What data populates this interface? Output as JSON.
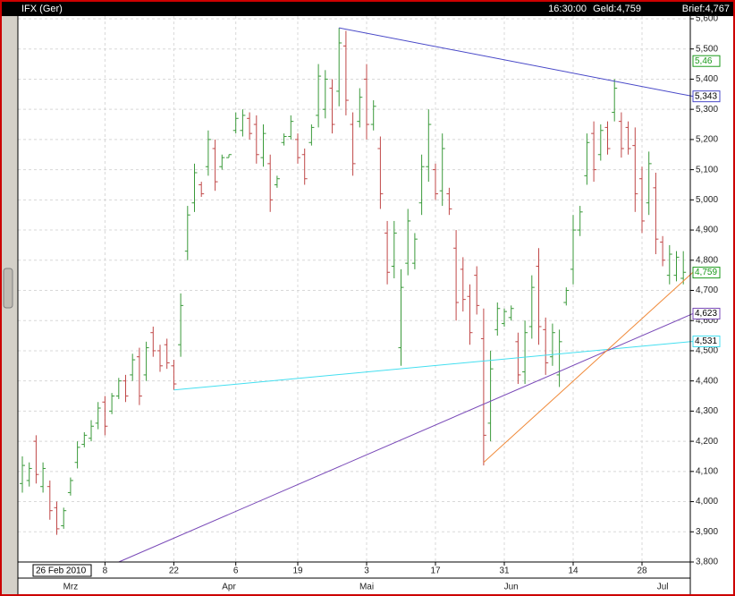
{
  "chart_data": {
    "type": "ohlc",
    "title": "IFX (Ger)",
    "time": "16:30:00",
    "bid": "Geld:4,759",
    "ask": "Brief:4,767",
    "cursor_date": "26 Feb 2010",
    "up_color": "#3a9a3a",
    "down_color": "#c04848",
    "grid": true,
    "ylim": [
      3800,
      5600
    ],
    "yticks": [
      {
        "value": 3800,
        "label": "3,800"
      },
      {
        "value": 3900,
        "label": "3,900"
      },
      {
        "value": 4000,
        "label": "4,000"
      },
      {
        "value": 4100,
        "label": "4,100"
      },
      {
        "value": 4200,
        "label": "4,200"
      },
      {
        "value": 4300,
        "label": "4,300"
      },
      {
        "value": 4400,
        "label": "4,400"
      },
      {
        "value": 4500,
        "label": "4,500"
      },
      {
        "value": 4600,
        "label": "4,600"
      },
      {
        "value": 4700,
        "label": "4,700"
      },
      {
        "value": 4800,
        "label": "4,800"
      },
      {
        "value": 4900,
        "label": "4,900"
      },
      {
        "value": 5000,
        "label": "5,000"
      },
      {
        "value": 5100,
        "label": "5,100"
      },
      {
        "value": 5200,
        "label": "5,200"
      },
      {
        "value": 5300,
        "label": "5,300"
      },
      {
        "value": 5400,
        "label": "5,400"
      },
      {
        "value": 5500,
        "label": "5,500"
      },
      {
        "value": 5600,
        "label": "5,600"
      }
    ],
    "categories": [
      null,
      null,
      null,
      null,
      null,
      null,
      null,
      null,
      null,
      null,
      null,
      null,
      "8",
      null,
      null,
      null,
      null,
      null,
      null,
      null,
      null,
      null,
      "22",
      null,
      null,
      null,
      null,
      null,
      null,
      null,
      null,
      "6",
      null,
      null,
      null,
      null,
      null,
      null,
      null,
      null,
      "19",
      null,
      null,
      null,
      null,
      null,
      null,
      null,
      null,
      null,
      "3",
      null,
      null,
      null,
      null,
      null,
      null,
      null,
      null,
      null,
      "17",
      null,
      null,
      null,
      null,
      null,
      null,
      null,
      null,
      null,
      "31",
      null,
      null,
      null,
      null,
      null,
      null,
      null,
      null,
      null,
      "14",
      null,
      null,
      null,
      null,
      null,
      null,
      null,
      null,
      null,
      "28",
      null,
      null,
      null,
      null,
      null,
      null
    ],
    "months": [
      null,
      null,
      null,
      null,
      null,
      null,
      null,
      "Mrz",
      null,
      null,
      null,
      null,
      null,
      null,
      null,
      null,
      null,
      null,
      null,
      null,
      null,
      null,
      null,
      null,
      null,
      null,
      null,
      null,
      null,
      null,
      "Apr",
      null,
      null,
      null,
      null,
      null,
      null,
      null,
      null,
      null,
      null,
      null,
      null,
      null,
      null,
      null,
      null,
      null,
      null,
      null,
      "Mai",
      null,
      null,
      null,
      null,
      null,
      null,
      null,
      null,
      null,
      null,
      null,
      null,
      null,
      null,
      null,
      null,
      null,
      null,
      null,
      null,
      "Jun",
      null,
      null,
      null,
      null,
      null,
      null,
      null,
      null,
      null,
      null,
      null,
      null,
      null,
      null,
      null,
      null,
      null,
      null,
      null,
      null,
      null,
      "Jul",
      null,
      null,
      null
    ],
    "open": [
      4060,
      4070,
      4200,
      4050,
      4050,
      3980,
      3920,
      4030,
      4130,
      4190,
      4210,
      4260,
      4330,
      4300,
      4350,
      4400,
      4420,
      4480,
      4420,
      4560,
      4500,
      4520,
      4450,
      4520,
      4830,
      4990,
      5050,
      5110,
      5170,
      5110,
      5140,
      5230,
      5230,
      5270,
      5250,
      5140,
      5120,
      5050,
      5190,
      5210,
      5200,
      5150,
      5190,
      5280,
      5300,
      5370,
      5360,
      5510,
      5250,
      5260,
      5400,
      5250,
      5170,
      4890,
      4780,
      4510,
      4790,
      4790,
      4990,
      5110,
      5100,
      5030,
      5020,
      4840,
      4770,
      4680,
      4750,
      4540,
      4260,
      4570,
      4590,
      4610,
      4530,
      4430,
      4580,
      4780,
      4570,
      4480,
      4420,
      4660,
      4770,
      4900,
      5080,
      5220,
      5150,
      5240,
      5290,
      5260,
      5240,
      5180,
      5070,
      4990,
      5040,
      4860,
      4750,
      4750,
      4740
    ],
    "high": [
      4150,
      4130,
      4220,
      4130,
      4070,
      4000,
      3980,
      4080,
      4200,
      4230,
      4270,
      4330,
      4350,
      4360,
      4410,
      4420,
      4490,
      4510,
      4530,
      4580,
      4520,
      4540,
      4470,
      4690,
      4980,
      5120,
      5060,
      5230,
      5200,
      5150,
      5150,
      5290,
      5300,
      5290,
      5280,
      5250,
      5150,
      5080,
      5220,
      5280,
      5220,
      5170,
      5250,
      5450,
      5430,
      5400,
      5570,
      5560,
      5290,
      5370,
      5450,
      5330,
      5210,
      4930,
      4930,
      4770,
      4970,
      4890,
      5150,
      5300,
      5120,
      5220,
      5040,
      4900,
      4810,
      4720,
      4780,
      4640,
      4500,
      4660,
      4640,
      4650,
      4560,
      4600,
      4750,
      4840,
      4610,
      4590,
      4570,
      4710,
      4950,
      4980,
      5220,
      5260,
      5250,
      5260,
      5400,
      5290,
      5260,
      5240,
      5110,
      5160,
      5090,
      4880,
      4850,
      4830,
      4830
    ],
    "low": [
      4030,
      4050,
      4060,
      4030,
      3940,
      3890,
      3910,
      4020,
      4110,
      4180,
      4200,
      4240,
      4220,
      4290,
      4340,
      4330,
      4400,
      4320,
      4400,
      4480,
      4430,
      4440,
      4370,
      4480,
      4800,
      4960,
      5010,
      5080,
      5030,
      5100,
      5140,
      5220,
      5210,
      5200,
      5120,
      5110,
      4960,
      5040,
      5180,
      5200,
      5120,
      5050,
      5180,
      5240,
      5270,
      5220,
      5310,
      5280,
      5080,
      5240,
      5200,
      5230,
      4970,
      4720,
      4740,
      4450,
      4750,
      4770,
      4950,
      5060,
      5000,
      4980,
      4950,
      4600,
      4630,
      4520,
      4620,
      4120,
      4200,
      4550,
      4580,
      4600,
      4390,
      4390,
      4540,
      4520,
      4420,
      4450,
      4380,
      4650,
      4720,
      4880,
      5050,
      5060,
      5130,
      5150,
      5260,
      5140,
      5150,
      4960,
      4890,
      4950,
      4820,
      4780,
      4720,
      4730,
      4720
    ],
    "close": [
      4120,
      4110,
      4090,
      4110,
      3970,
      3910,
      3970,
      4070,
      4180,
      4220,
      4250,
      4310,
      4250,
      4350,
      4400,
      4350,
      4470,
      4350,
      4510,
      4500,
      4450,
      4460,
      4390,
      4650,
      4950,
      5090,
      5020,
      5200,
      5060,
      5140,
      5150,
      5270,
      5280,
      5220,
      5150,
      5220,
      5000,
      5070,
      5210,
      5260,
      5140,
      5070,
      5240,
      5410,
      5400,
      5250,
      5520,
      5330,
      5120,
      5340,
      5250,
      5310,
      5020,
      4760,
      4890,
      4710,
      4930,
      4870,
      5110,
      5250,
      5020,
      5170,
      4970,
      4660,
      4670,
      4560,
      4650,
      4220,
      4440,
      4640,
      4630,
      4640,
      4420,
      4560,
      4710,
      4580,
      4460,
      4560,
      4530,
      4700,
      4900,
      4960,
      5190,
      5100,
      5230,
      5170,
      5370,
      5170,
      5170,
      5020,
      4930,
      5120,
      4870,
      4800,
      4820,
      4810,
      4760
    ],
    "trendlines": [
      {
        "color": "#4848c8",
        "start_index": 46,
        "start": 5570,
        "end": {
          "value": 5343,
          "label": "5,343"
        }
      },
      {
        "color": "#44dff0",
        "start_index": 22,
        "start": 4370,
        "end": {
          "value": 4531,
          "label": "4,531"
        }
      },
      {
        "color": "#7a4ab8",
        "start_index": 14,
        "start": 3800,
        "end": {
          "value": 4623,
          "label": "4,623"
        }
      },
      {
        "color": "#f08a3a",
        "start_index": 67,
        "start": 4130,
        "end": 4760
      }
    ],
    "markers": [
      {
        "value": 5460,
        "label": "5,46",
        "color": "#1a9a1a"
      },
      {
        "value": 4759,
        "label": "4,759",
        "color": "#1a9a1a"
      }
    ]
  }
}
